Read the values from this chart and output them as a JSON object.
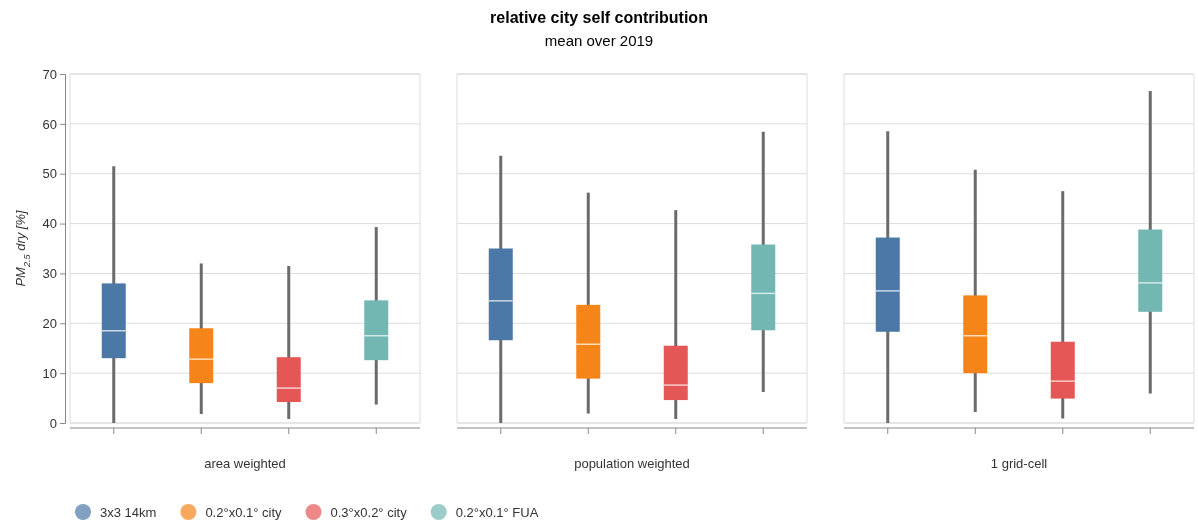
{
  "chart_data": {
    "type": "box",
    "title": "relative city self contribution",
    "subtitle": "mean over 2019",
    "ylabel": "PM$_{2.5}$ dry [%]",
    "categories": [
      "area weighted",
      "population weighted",
      "1 grid-cell"
    ],
    "ylim": [
      0,
      70
    ],
    "yticks": [
      0,
      10,
      20,
      30,
      40,
      50,
      60,
      70
    ],
    "grid": "y",
    "legend": "bottom",
    "series": [
      {
        "name": "3x3 14km",
        "color": "#4c78a8",
        "boxes": [
          {
            "low": 0,
            "q1": 13,
            "median": 18.5,
            "q3": 28,
            "high": 51.5
          },
          {
            "low": 0,
            "q1": 16.6,
            "median": 24.5,
            "q3": 35,
            "high": 53.6
          },
          {
            "low": 0,
            "q1": 18.3,
            "median": 26.5,
            "q3": 37.2,
            "high": 58.5
          }
        ]
      },
      {
        "name": "0.2°x0.1° city",
        "color": "#f58518",
        "boxes": [
          {
            "low": 1.8,
            "q1": 8,
            "median": 12.8,
            "q3": 19,
            "high": 32
          },
          {
            "low": 1.9,
            "q1": 8.9,
            "median": 15.8,
            "q3": 23.7,
            "high": 46.2
          },
          {
            "low": 2.2,
            "q1": 10,
            "median": 17.5,
            "q3": 25.6,
            "high": 50.8
          }
        ]
      },
      {
        "name": "0.3°x0.2° city",
        "color": "#e45756",
        "boxes": [
          {
            "low": 0.8,
            "q1": 4.2,
            "median": 7,
            "q3": 13.2,
            "high": 31.5
          },
          {
            "low": 0.8,
            "q1": 4.6,
            "median": 7.6,
            "q3": 15.5,
            "high": 42.7
          },
          {
            "low": 0.9,
            "q1": 4.9,
            "median": 8.4,
            "q3": 16.3,
            "high": 46.5
          }
        ]
      },
      {
        "name": "0.2°x0.1° FUA",
        "color": "#72b7b2",
        "boxes": [
          {
            "low": 3.7,
            "q1": 12.6,
            "median": 17.5,
            "q3": 24.6,
            "high": 39.3
          },
          {
            "low": 6.2,
            "q1": 18.6,
            "median": 26,
            "q3": 35.8,
            "high": 58.4
          },
          {
            "low": 5.9,
            "q1": 22.3,
            "median": 28.1,
            "q3": 38.8,
            "high": 66.6
          }
        ]
      }
    ]
  }
}
